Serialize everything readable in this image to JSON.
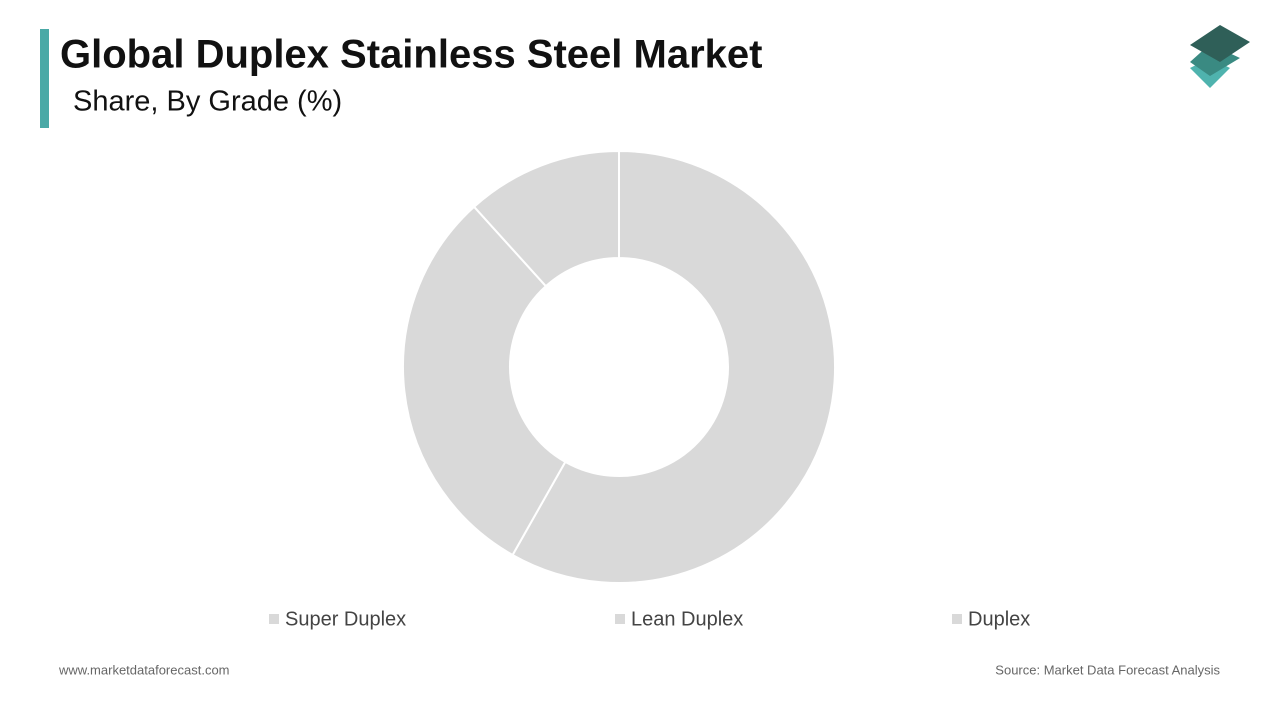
{
  "chart_data": {
    "type": "pie",
    "title": "Global Duplex Stainless Steel Market",
    "subtitle": "Share, By Grade (%)",
    "categories": [
      "Super Duplex",
      "Lean Duplex",
      "Duplex"
    ],
    "values": [
      58.2,
      30.1,
      11.7
    ],
    "colors": [
      "#d9d9d9",
      "#d9d9d9",
      "#d9d9d9"
    ]
  },
  "footer": {
    "website": "www.marketdataforecast.com",
    "source": "Source: Market Data Forecast Analysis"
  }
}
